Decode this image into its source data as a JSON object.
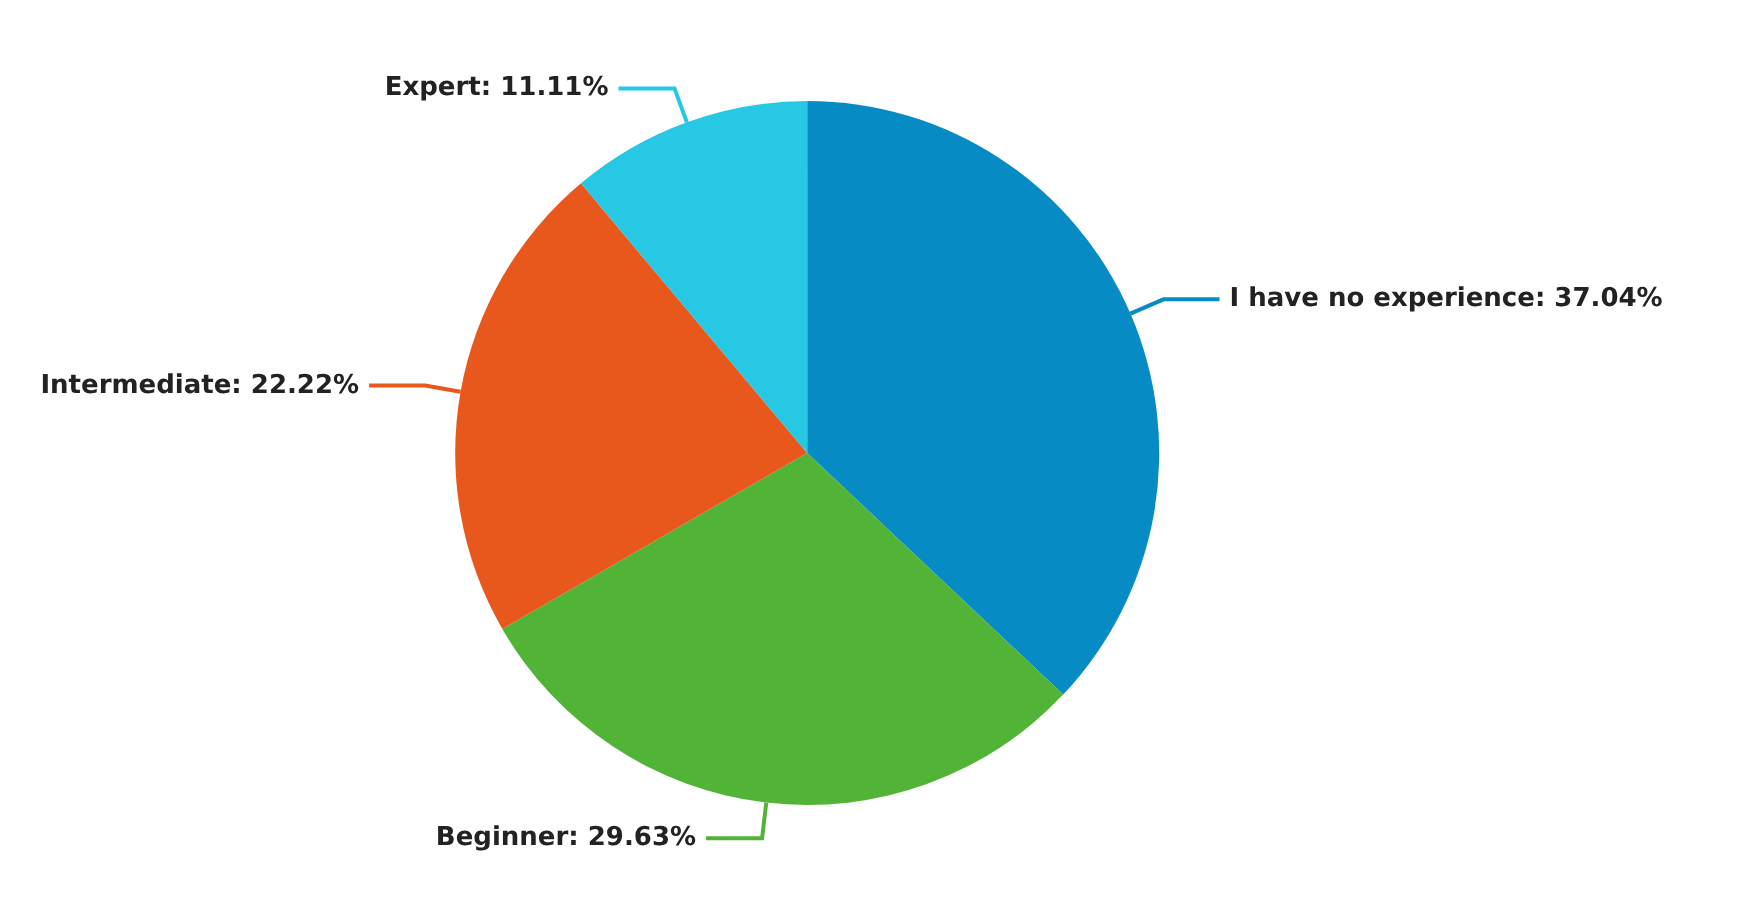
{
  "chart_data": {
    "type": "pie",
    "categories": [
      "I have no experience",
      "Beginner",
      "Intermediate",
      "Expert"
    ],
    "values": [
      37.04,
      29.63,
      22.22,
      11.11
    ],
    "value_labels": [
      "37.04%",
      "29.63%",
      "22.22%",
      "11.11%"
    ],
    "colors": [
      "#068bc4",
      "#52b436",
      "#e8581c",
      "#27c8e3"
    ],
    "legend": false
  }
}
